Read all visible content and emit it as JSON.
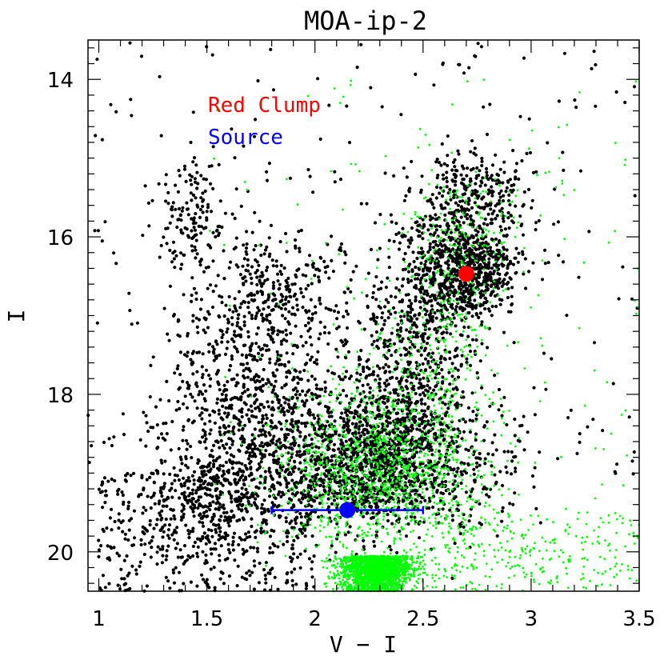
{
  "chart_data": {
    "type": "scatter",
    "title": "MOA-ip-2",
    "xlabel": "V − I",
    "ylabel": "I",
    "xlim": [
      0.95,
      3.5
    ],
    "ylim": [
      20.5,
      13.5
    ],
    "y_inverted": true,
    "xticks": [
      "1",
      "1.5",
      "2",
      "2.5",
      "3",
      "3.5"
    ],
    "yticks": [
      "14",
      "16",
      "18",
      "20"
    ],
    "grid": false,
    "legend_position": "top-left",
    "legend": [
      {
        "label": "Red Clump",
        "color": "#ff0000"
      },
      {
        "label": "Source",
        "color": "#0000ff"
      }
    ],
    "series": [
      {
        "name": "Red Clump",
        "color": "#ff0000",
        "points": [
          {
            "x": 2.7,
            "y": 16.47
          }
        ]
      },
      {
        "name": "Source",
        "color": "#0000ff",
        "points": [
          {
            "x": 2.15,
            "y": 19.47,
            "x_err_low": 1.8,
            "x_err_high": 2.5
          }
        ]
      },
      {
        "color": "#000000",
        "points_description_count": 5000,
        "note_free": true
      },
      {
        "color": "#00ff00",
        "points_description_count": 5000
      }
    ]
  }
}
